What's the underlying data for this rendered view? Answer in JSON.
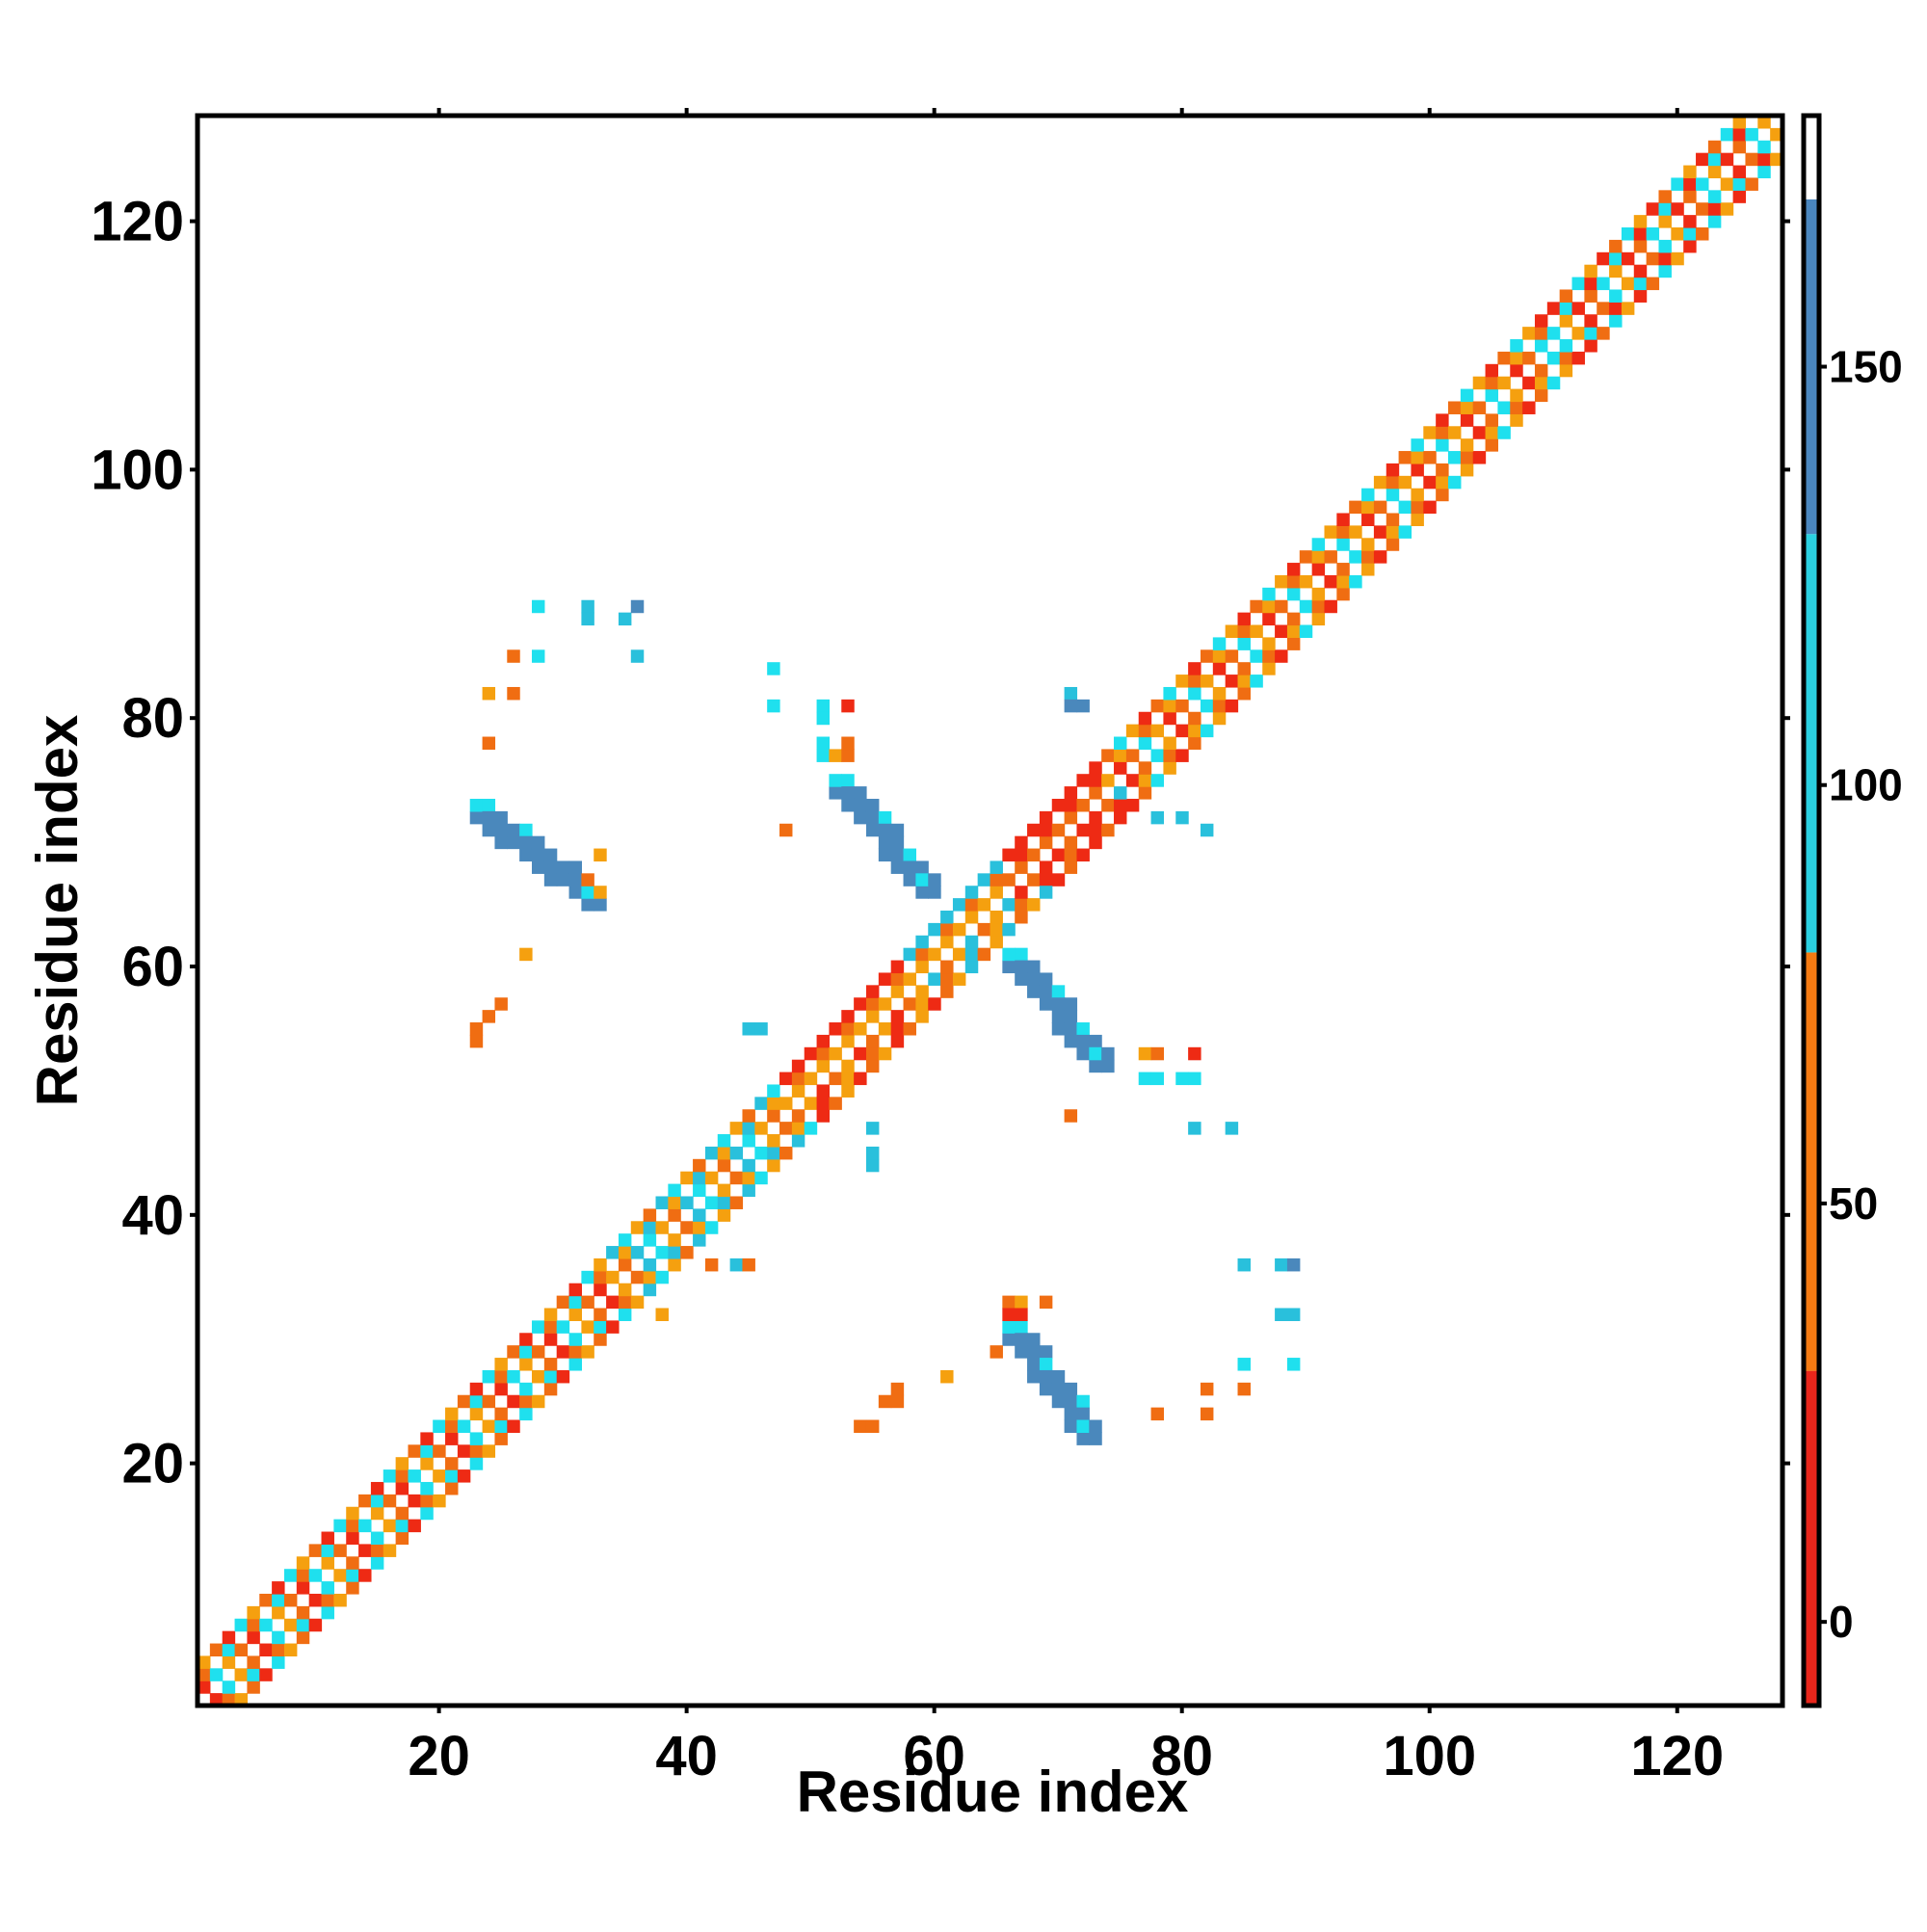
{
  "chart_data": {
    "type": "heatmap",
    "title": "",
    "xlabel": "Residue index",
    "ylabel": "Residue index",
    "xlim": [
      1,
      128
    ],
    "ylim": [
      1,
      128
    ],
    "x_ticks": [
      20,
      40,
      60,
      80,
      100,
      120
    ],
    "y_ticks": [
      20,
      40,
      60,
      80,
      100,
      120
    ],
    "colorbar": {
      "range": [
        -10,
        180
      ],
      "ticks": [
        0,
        50,
        100,
        150
      ],
      "bands": [
        {
          "from": -10,
          "to": 30,
          "color": "#e8261b"
        },
        {
          "from": 30,
          "to": 80,
          "color": "#f47a12"
        },
        {
          "from": 80,
          "to": 130,
          "color": "#2bd0e0"
        },
        {
          "from": 130,
          "to": 170,
          "color": "#4a86be"
        },
        {
          "from": 170,
          "to": 180,
          "color": "#ffffff"
        }
      ]
    },
    "colors": {
      "red": "#ee2a14",
      "orange": "#f06d12",
      "amber": "#f5a00f",
      "cyan": "#1fe0ee",
      "lightblue": "#29c0dc",
      "steelblue": "#4a88bc"
    },
    "grid": false,
    "legend": "colorbar-right",
    "cells_note_x": "residue i",
    "diagonal_band": {
      "residues": [
        1,
        128
      ],
      "half_width": 3,
      "palette_by_segment": [
        {
          "from": 1,
          "to": 22,
          "colors": [
            "red",
            "orange",
            "amber",
            "cyan"
          ]
        },
        {
          "from": 22,
          "to": 34,
          "colors": [
            "red",
            "orange",
            "amber",
            "cyan"
          ]
        },
        {
          "from": 34,
          "to": 48,
          "colors": [
            "cyan",
            "lightblue",
            "orange",
            "amber"
          ]
        },
        {
          "from": 48,
          "to": 58,
          "colors": [
            "red",
            "orange",
            "amber"
          ]
        },
        {
          "from": 58,
          "to": 66,
          "colors": [
            "lightblue",
            "orange",
            "amber"
          ]
        },
        {
          "from": 66,
          "to": 74,
          "colors": [
            "red",
            "red",
            "orange"
          ]
        },
        {
          "from": 74,
          "to": 92,
          "colors": [
            "cyan",
            "orange",
            "red",
            "amber"
          ]
        },
        {
          "from": 92,
          "to": 110,
          "colors": [
            "cyan",
            "orange",
            "red",
            "amber"
          ]
        },
        {
          "from": 110,
          "to": 128,
          "colors": [
            "orange",
            "red",
            "amber",
            "cyan"
          ]
        }
      ]
    },
    "off_diagonal_strips": [
      {
        "from": [
          23,
          72
        ],
        "to": [
          32,
          65
        ],
        "color": "steelblue",
        "edge": "cyan"
      },
      {
        "from": [
          52,
          74
        ],
        "to": [
          59,
          66
        ],
        "color": "steelblue",
        "edge": "cyan"
      },
      {
        "from": [
          66,
          60
        ],
        "to": [
          73,
          52
        ],
        "color": "steelblue",
        "edge": "cyan"
      },
      {
        "from": [
          66,
          30
        ],
        "to": [
          72,
          22
        ],
        "color": "steelblue",
        "edge": "cyan"
      }
    ],
    "scattered_points": [
      {
        "x": 28,
        "y": 89,
        "c": "cyan"
      },
      {
        "x": 32,
        "y": 89,
        "c": "lightblue"
      },
      {
        "x": 32,
        "y": 88,
        "c": "lightblue"
      },
      {
        "x": 35,
        "y": 88,
        "c": "lightblue"
      },
      {
        "x": 36,
        "y": 89,
        "c": "steelblue"
      },
      {
        "x": 36,
        "y": 85,
        "c": "lightblue"
      },
      {
        "x": 28,
        "y": 85,
        "c": "cyan"
      },
      {
        "x": 26,
        "y": 85,
        "c": "orange"
      },
      {
        "x": 24,
        "y": 82,
        "c": "amber"
      },
      {
        "x": 26,
        "y": 82,
        "c": "orange"
      },
      {
        "x": 24,
        "y": 78,
        "c": "orange"
      },
      {
        "x": 47,
        "y": 84,
        "c": "cyan"
      },
      {
        "x": 47,
        "y": 81,
        "c": "cyan"
      },
      {
        "x": 51,
        "y": 81,
        "c": "cyan"
      },
      {
        "x": 51,
        "y": 80,
        "c": "cyan"
      },
      {
        "x": 53,
        "y": 81,
        "c": "red"
      },
      {
        "x": 51,
        "y": 78,
        "c": "cyan"
      },
      {
        "x": 51,
        "y": 77,
        "c": "cyan"
      },
      {
        "x": 52,
        "y": 77,
        "c": "amber"
      },
      {
        "x": 53,
        "y": 77,
        "c": "orange"
      },
      {
        "x": 53,
        "y": 78,
        "c": "orange"
      },
      {
        "x": 48,
        "y": 71,
        "c": "orange"
      },
      {
        "x": 71,
        "y": 82,
        "c": "lightblue"
      },
      {
        "x": 71,
        "y": 81,
        "c": "steelblue"
      },
      {
        "x": 72,
        "y": 81,
        "c": "steelblue"
      },
      {
        "x": 33,
        "y": 69,
        "c": "amber"
      },
      {
        "x": 32,
        "y": 67,
        "c": "orange"
      },
      {
        "x": 33,
        "y": 66,
        "c": "amber"
      },
      {
        "x": 27,
        "y": 61,
        "c": "amber"
      },
      {
        "x": 25,
        "y": 57,
        "c": "orange"
      },
      {
        "x": 24,
        "y": 56,
        "c": "orange"
      },
      {
        "x": 23,
        "y": 55,
        "c": "orange"
      },
      {
        "x": 23,
        "y": 54,
        "c": "orange"
      },
      {
        "x": 77,
        "y": 53,
        "c": "amber"
      },
      {
        "x": 78,
        "y": 53,
        "c": "orange"
      },
      {
        "x": 81,
        "y": 53,
        "c": "red"
      },
      {
        "x": 77,
        "y": 51,
        "c": "cyan"
      },
      {
        "x": 78,
        "y": 51,
        "c": "cyan"
      },
      {
        "x": 80,
        "y": 51,
        "c": "cyan"
      },
      {
        "x": 81,
        "y": 51,
        "c": "cyan"
      },
      {
        "x": 71,
        "y": 48,
        "c": "orange"
      },
      {
        "x": 81,
        "y": 47,
        "c": "lightblue"
      },
      {
        "x": 84,
        "y": 47,
        "c": "lightblue"
      },
      {
        "x": 85,
        "y": 36,
        "c": "lightblue"
      },
      {
        "x": 88,
        "y": 36,
        "c": "lightblue"
      },
      {
        "x": 89,
        "y": 36,
        "c": "steelblue"
      },
      {
        "x": 88,
        "y": 32,
        "c": "lightblue"
      },
      {
        "x": 89,
        "y": 32,
        "c": "lightblue"
      },
      {
        "x": 85,
        "y": 28,
        "c": "cyan"
      },
      {
        "x": 89,
        "y": 28,
        "c": "cyan"
      },
      {
        "x": 85,
        "y": 26,
        "c": "orange"
      },
      {
        "x": 82,
        "y": 26,
        "c": "orange"
      },
      {
        "x": 82,
        "y": 24,
        "c": "orange"
      },
      {
        "x": 78,
        "y": 24,
        "c": "orange"
      },
      {
        "x": 61,
        "y": 27,
        "c": "amber"
      },
      {
        "x": 57,
        "y": 26,
        "c": "orange"
      },
      {
        "x": 56,
        "y": 25,
        "c": "orange"
      },
      {
        "x": 57,
        "y": 25,
        "c": "orange"
      },
      {
        "x": 54,
        "y": 23,
        "c": "orange"
      },
      {
        "x": 55,
        "y": 23,
        "c": "orange"
      },
      {
        "x": 66,
        "y": 33,
        "c": "orange"
      },
      {
        "x": 67,
        "y": 33,
        "c": "amber"
      },
      {
        "x": 69,
        "y": 33,
        "c": "orange"
      },
      {
        "x": 66,
        "y": 32,
        "c": "red"
      },
      {
        "x": 67,
        "y": 32,
        "c": "red"
      },
      {
        "x": 65,
        "y": 29,
        "c": "orange"
      },
      {
        "x": 46,
        "y": 55,
        "c": "lightblue"
      },
      {
        "x": 45,
        "y": 55,
        "c": "lightblue"
      },
      {
        "x": 55,
        "y": 47,
        "c": "lightblue"
      },
      {
        "x": 55,
        "y": 44,
        "c": "lightblue"
      },
      {
        "x": 55,
        "y": 45,
        "c": "lightblue"
      },
      {
        "x": 42,
        "y": 36,
        "c": "orange"
      },
      {
        "x": 44,
        "y": 36,
        "c": "lightblue"
      },
      {
        "x": 45,
        "y": 36,
        "c": "orange"
      },
      {
        "x": 38,
        "y": 32,
        "c": "amber"
      },
      {
        "x": 69,
        "y": 66,
        "c": "lightblue"
      },
      {
        "x": 75,
        "y": 74,
        "c": "lightblue"
      },
      {
        "x": 78,
        "y": 72,
        "c": "lightblue"
      },
      {
        "x": 80,
        "y": 72,
        "c": "lightblue"
      },
      {
        "x": 82,
        "y": 71,
        "c": "lightblue"
      }
    ]
  }
}
